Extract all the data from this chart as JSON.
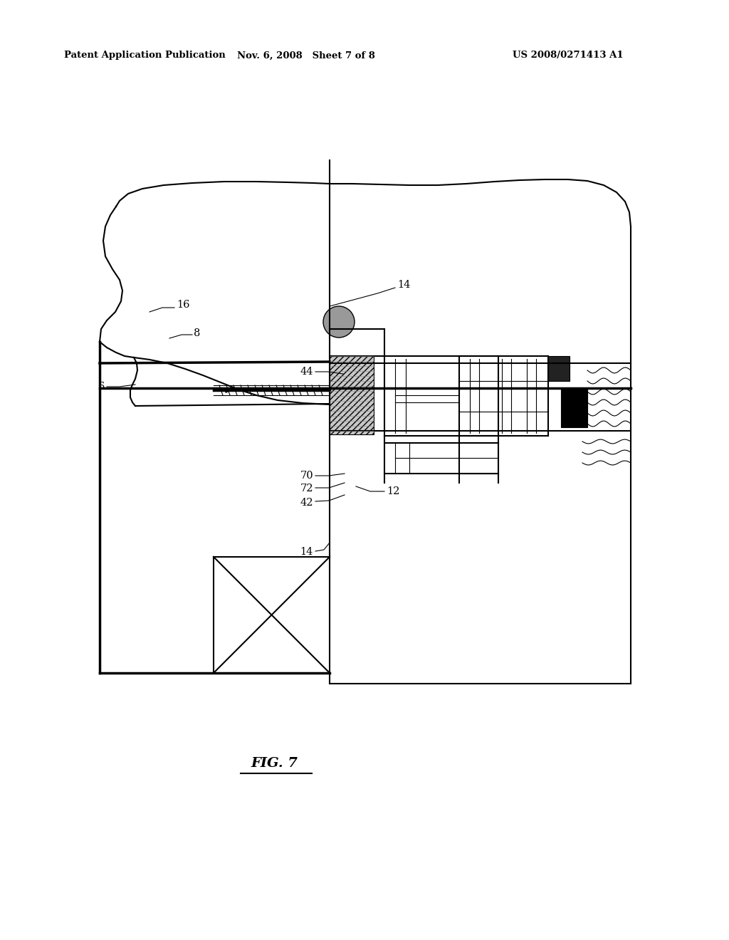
{
  "bg": "#ffffff",
  "lc": "#000000",
  "header_left": "Patent Application Publication",
  "header_mid": "Nov. 6, 2008   Sheet 7 of 8",
  "header_right": "US 2008/0271413 A1",
  "fig_label": "FIG. 7"
}
